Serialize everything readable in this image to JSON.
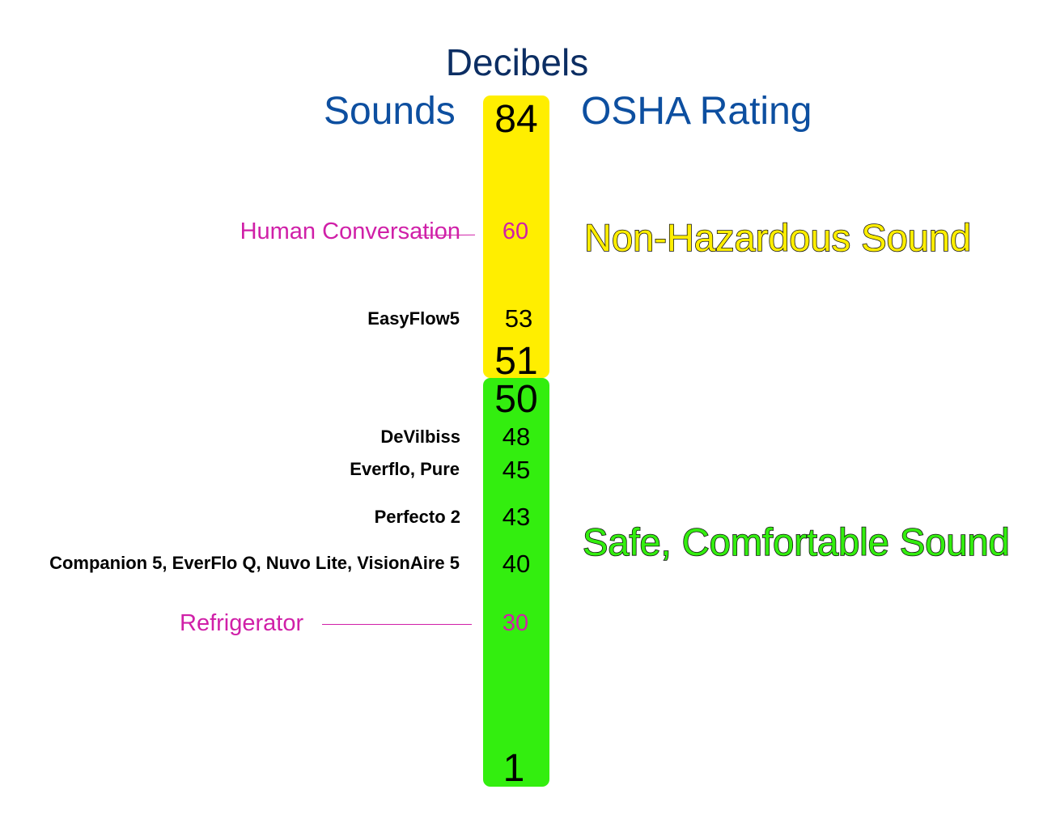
{
  "title": "Decibels",
  "headers": {
    "sounds": "Sounds",
    "osha": "OSHA Rating"
  },
  "colors": {
    "yellow_zone": "#ffee00",
    "green_zone": "#33ee0f",
    "reference_sound": "#d020a8",
    "title": "#0c2e63",
    "headers": "#0d4fa0"
  },
  "scale": {
    "top": "84",
    "yellow_bottom": "51",
    "green_top": "50",
    "bottom": "1"
  },
  "items": [
    {
      "label": "Human Conversation",
      "value": "60",
      "kind": "reference"
    },
    {
      "label": "EasyFlow5",
      "value": "53",
      "kind": "device"
    },
    {
      "label": "DeVilbiss",
      "value": "48",
      "kind": "device"
    },
    {
      "label": "Everflo, Pure",
      "value": "45",
      "kind": "device"
    },
    {
      "label": "Perfecto 2",
      "value": "43",
      "kind": "device"
    },
    {
      "label": "Companion 5, EverFlo Q, Nuvo Lite, VisionAire 5",
      "value": "40",
      "kind": "device"
    },
    {
      "label": "Refrigerator",
      "value": "30",
      "kind": "reference"
    }
  ],
  "ratings": {
    "yellow": "Non-Hazardous Sound",
    "green": "Safe, Comfortable Sound"
  }
}
